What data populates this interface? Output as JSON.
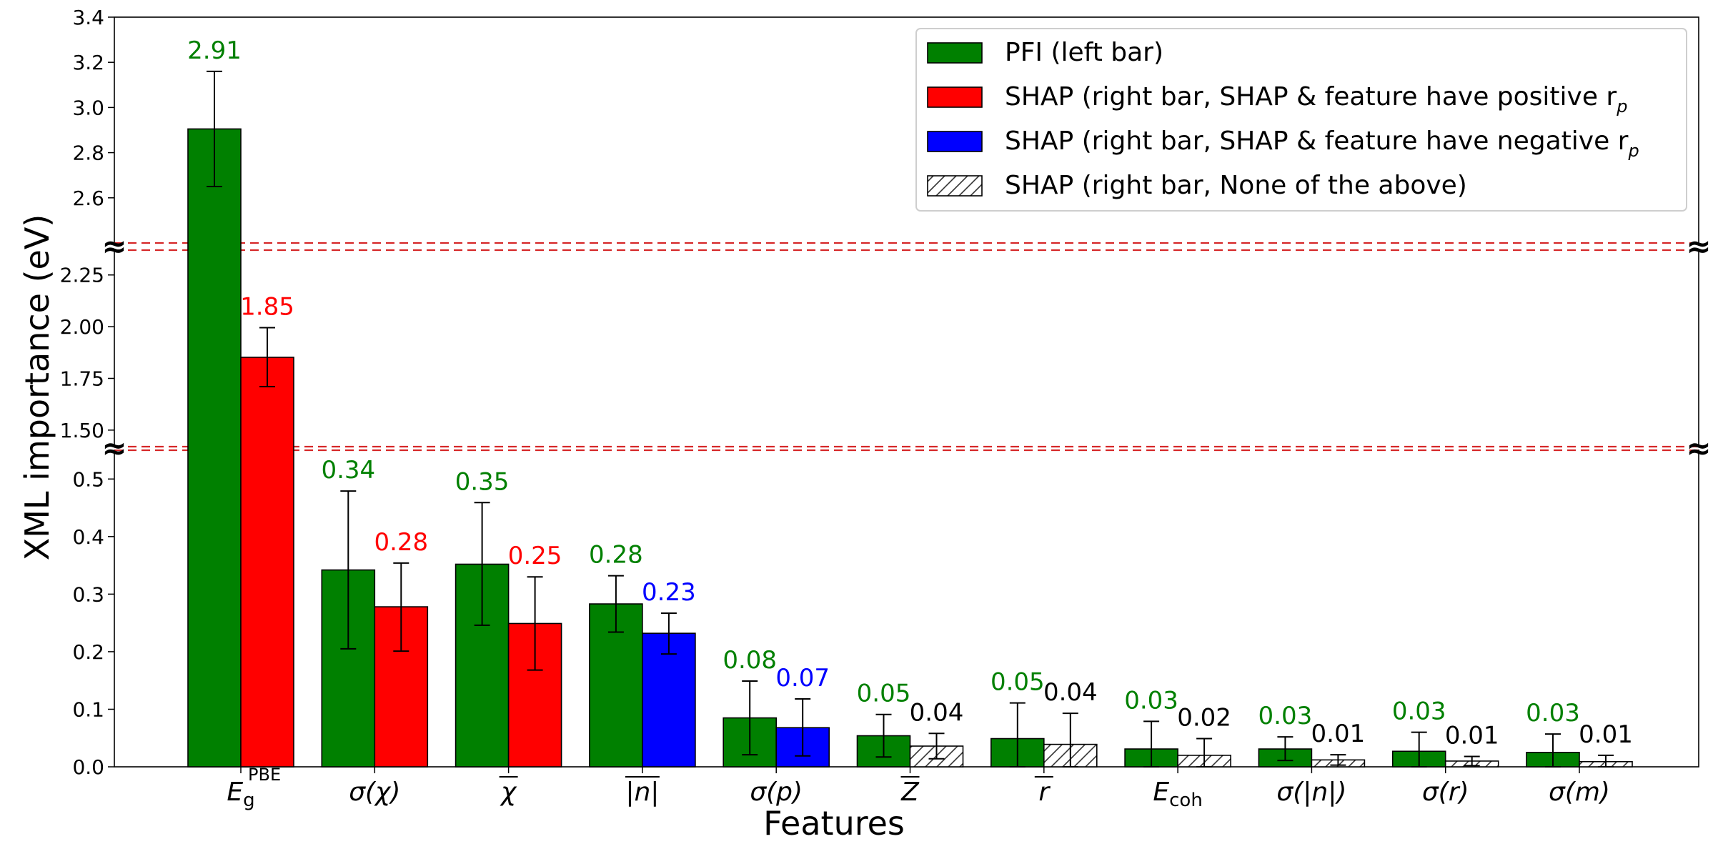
{
  "chart_data": {
    "type": "bar",
    "xlabel": "Features",
    "ylabel": "XML importance (eV)",
    "categories": [
      "E_g^PBE",
      "σ(χ)",
      "χ̄",
      "|n| (mean)",
      "σ(p)",
      "Z̄",
      "r̄",
      "E_coh",
      "σ(|n|)",
      "σ(r)",
      "σ(m)"
    ],
    "category_display": [
      {
        "main": "E",
        "sub": "g",
        "sup": "PBE"
      },
      {
        "main": "σ(χ)"
      },
      {
        "main": "χ",
        "overline": true
      },
      {
        "main": "|n|",
        "overline": true
      },
      {
        "main": "σ(p)"
      },
      {
        "main": "Z",
        "overline": true
      },
      {
        "main": "r",
        "overline": true
      },
      {
        "main": "E",
        "sub": "coh"
      },
      {
        "main": "σ(|n|)"
      },
      {
        "main": "σ(r)"
      },
      {
        "main": "σ(m)"
      }
    ],
    "y_axis_segments": [
      {
        "range": [
          0.0,
          0.55
        ],
        "ticks": [
          "0.0",
          "0.1",
          "0.2",
          "0.3",
          "0.4",
          "0.5"
        ]
      },
      {
        "range": [
          1.42,
          2.37
        ],
        "ticks": [
          "1.50",
          "1.75",
          "2.00",
          "2.25"
        ]
      },
      {
        "range": [
          2.4,
          3.4
        ],
        "ticks": [
          "2.6",
          "2.8",
          "3.0",
          "3.2",
          "3.4"
        ]
      }
    ],
    "break_marker": "≈",
    "series": [
      {
        "name": "PFI (left bar)",
        "values": [
          2.905,
          0.342,
          0.352,
          0.283,
          0.085,
          0.054,
          0.049,
          0.031,
          0.031,
          0.027,
          0.025
        ],
        "err_low": [
          2.65,
          0.205,
          0.246,
          0.234,
          0.021,
          0.017,
          0.0,
          0.0,
          0.011,
          0.0,
          0.0
        ],
        "err_high": [
          3.16,
          0.479,
          0.459,
          0.332,
          0.149,
          0.091,
          0.111,
          0.079,
          0.052,
          0.06,
          0.057
        ],
        "labels": [
          "2.91",
          "0.34",
          "0.35",
          "0.28",
          "0.08",
          "0.05",
          "0.05",
          "0.03",
          "0.03",
          "0.03",
          "0.03"
        ],
        "colors": [
          "#008000",
          "#008000",
          "#008000",
          "#008000",
          "#008000",
          "#008000",
          "#008000",
          "#008000",
          "#008000",
          "#008000",
          "#008000"
        ],
        "label_color": "#008000"
      },
      {
        "name": "SHAP (right bar)",
        "values": [
          1.852,
          0.278,
          0.249,
          0.232,
          0.068,
          0.036,
          0.039,
          0.02,
          0.012,
          0.01,
          0.009
        ],
        "err_low": [
          1.71,
          0.201,
          0.168,
          0.196,
          0.019,
          0.014,
          0.0,
          0.0,
          0.003,
          0.002,
          0.0
        ],
        "err_high": [
          1.995,
          0.354,
          0.33,
          0.267,
          0.118,
          0.058,
          0.093,
          0.049,
          0.021,
          0.018,
          0.02
        ],
        "labels": [
          "1.85",
          "0.28",
          "0.25",
          "0.23",
          "0.07",
          "0.04",
          "0.04",
          "0.02",
          "0.01",
          "0.01",
          "0.01"
        ],
        "fill": [
          "red",
          "red",
          "red",
          "blue",
          "blue",
          "hatch",
          "hatch",
          "hatch",
          "hatch",
          "hatch",
          "hatch"
        ],
        "label_colors": [
          "#ff0000",
          "#ff0000",
          "#ff0000",
          "#0000ff",
          "#0000ff",
          "#000000",
          "#000000",
          "#000000",
          "#000000",
          "#000000",
          "#000000"
        ]
      }
    ],
    "legend": {
      "placement": "top-right",
      "entries": [
        {
          "label": "PFI (left bar)",
          "swatch": "#008000"
        },
        {
          "label": "SHAP (right bar, SHAP & feature have positive r",
          "sub": "p",
          "swatch": "#ff0000"
        },
        {
          "label": "SHAP (right bar, SHAP & feature have negative r",
          "sub": "p",
          "swatch": "#0000ff"
        },
        {
          "label": "SHAP (right bar, None of the above)",
          "swatch": "hatch"
        }
      ]
    },
    "colors": {
      "pfi": "#008000",
      "positive": "#ff0000",
      "negative": "#0000ff",
      "break_line": "#d62728"
    }
  }
}
